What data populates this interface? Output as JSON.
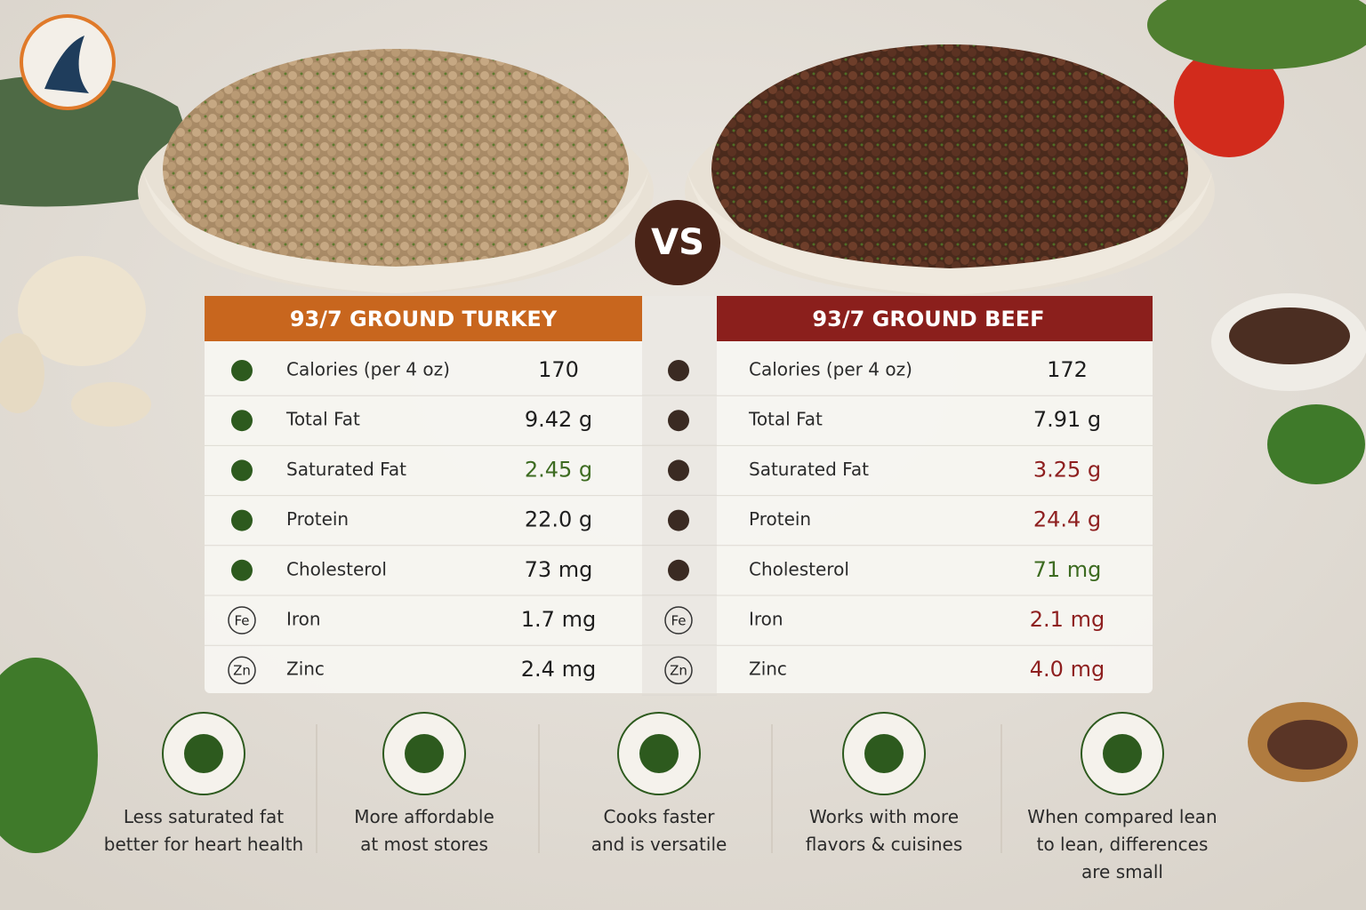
{
  "vs": "VS",
  "turkey": {
    "title": "93/7 GROUND TURKEY",
    "rows": [
      {
        "label": "Calories (per 4 oz)",
        "value": "170"
      },
      {
        "label": "Total Fat",
        "value": "9.42 g"
      },
      {
        "label": "Saturated Fat",
        "value": "2.45 g"
      },
      {
        "label": "Protein",
        "value": "22.0 g"
      },
      {
        "label": "Cholesterol",
        "value": "73 mg"
      },
      {
        "label": "Iron",
        "value": "1.7 mg",
        "icon": "Fe"
      },
      {
        "label": "Zinc",
        "value": "2.4 mg",
        "icon": "Zn"
      }
    ]
  },
  "beef": {
    "title": "93/7 GROUND BEEF",
    "rows": [
      {
        "label": "Calories (per 4 oz)",
        "value": "172"
      },
      {
        "label": "Total Fat",
        "value": "7.91 g"
      },
      {
        "label": "Saturated Fat",
        "value": "3.25 g"
      },
      {
        "label": "Protein",
        "value": "24.4 g"
      },
      {
        "label": "Cholesterol",
        "value": "71 mg"
      },
      {
        "label": "Iron",
        "value": "2.1 mg",
        "icon": "Fe"
      },
      {
        "label": "Zinc",
        "value": "4.0 mg",
        "icon": "Zn"
      }
    ]
  },
  "benefits": [
    {
      "lines": [
        "Less saturated fat",
        "better for heart health"
      ]
    },
    {
      "lines": [
        "More affordable",
        "at most stores"
      ]
    },
    {
      "lines": [
        "Cooks faster",
        "and is versatile"
      ]
    },
    {
      "lines": [
        "Works with more",
        "flavors & cuisines"
      ]
    },
    {
      "lines": [
        "When compared lean",
        "to lean, differences",
        "are small"
      ]
    }
  ]
}
